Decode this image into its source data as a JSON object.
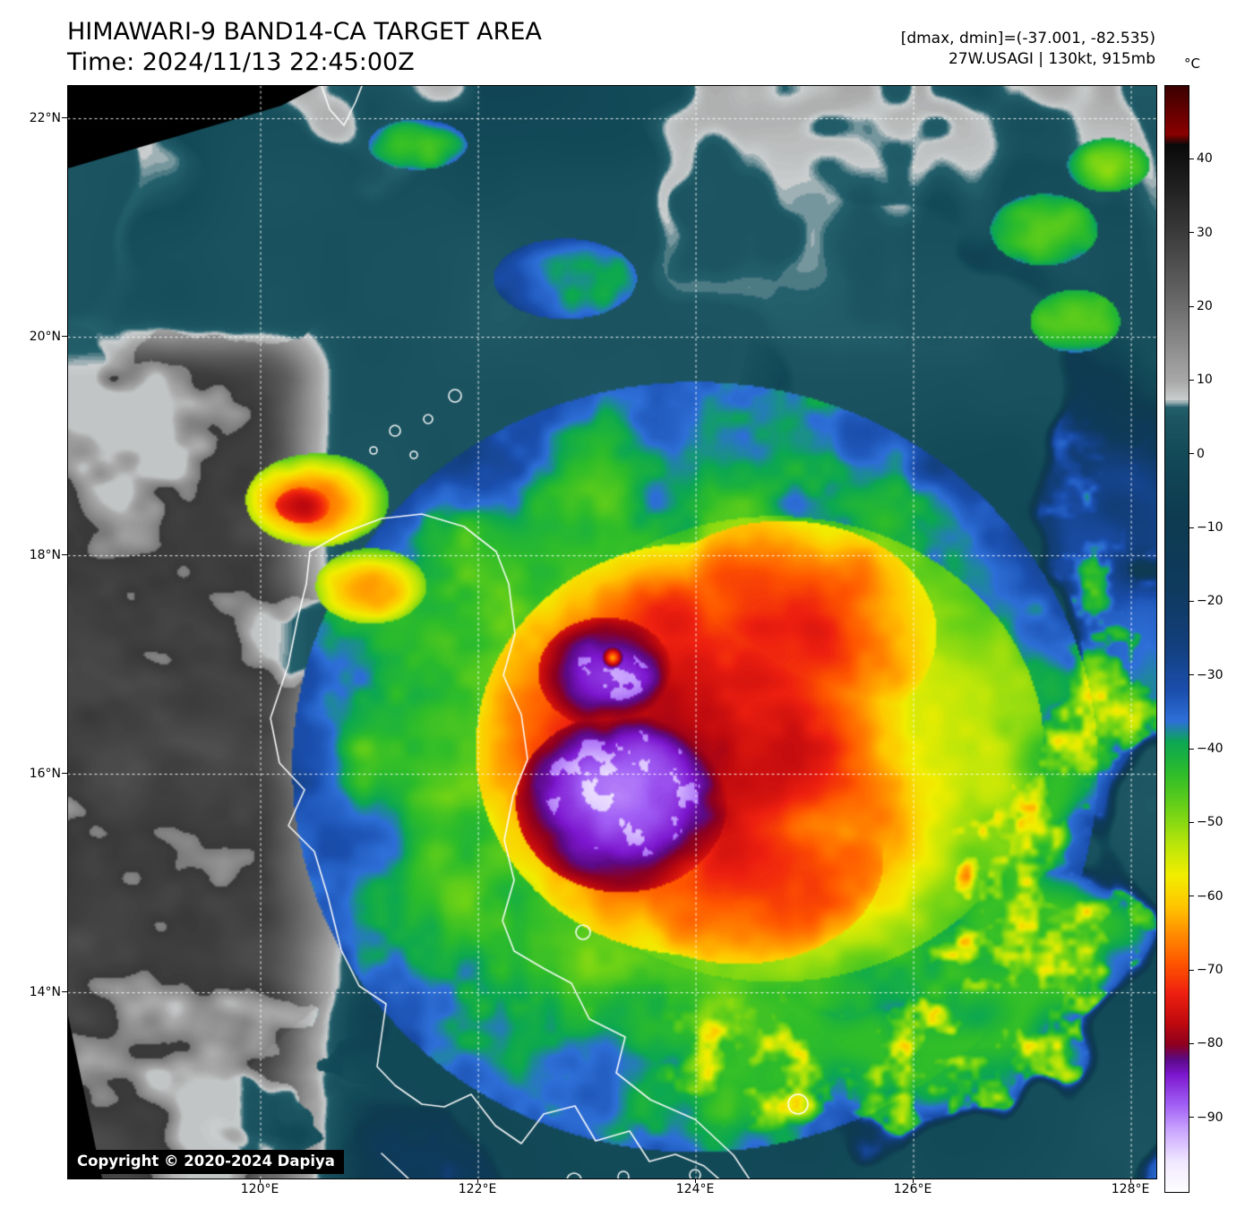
{
  "header": {
    "title": "HIMAWARI-9 BAND14-CA TARGET AREA",
    "time": "Time: 2024/11/13 22:45:00Z",
    "range_info": "[dmax, dmin]=(-37.001, -82.535)",
    "storm_info": "27W.USAGI | 130kt, 915mb"
  },
  "map": {
    "copyright": "Copyright © 2020-2024 Dapiya",
    "extent": {
      "lon_min": 118.23,
      "lon_max": 128.23,
      "lat_min": 12.3,
      "lat_max": 22.3
    },
    "grid": {
      "lats": [
        22,
        20,
        18,
        16,
        14
      ],
      "lat_labels": [
        "22°N",
        "20°N",
        "18°N",
        "16°N",
        "14°N"
      ],
      "lons": [
        120,
        122,
        124,
        126,
        128
      ],
      "lon_labels": [
        "120°E",
        "122°E",
        "124°E",
        "126°E",
        "128°E"
      ]
    }
  },
  "colorbar": {
    "unit": "°C",
    "domain": [
      -100,
      50
    ],
    "tick_values": [
      40,
      30,
      20,
      10,
      0,
      -10,
      -20,
      -30,
      -40,
      -50,
      -60,
      -70,
      -80,
      -90
    ],
    "tick_labels": [
      "40",
      "30",
      "20",
      "10",
      "0",
      "−10",
      "−20",
      "−30",
      "−40",
      "−50",
      "−60",
      "−70",
      "−80",
      "−90"
    ],
    "stops": [
      [
        -100,
        "#ffffff"
      ],
      [
        -96,
        "#f2eaff"
      ],
      [
        -92,
        "#cfadff"
      ],
      [
        -88,
        "#a15ef5"
      ],
      [
        -84,
        "#7d17cf"
      ],
      [
        -82,
        "#5c0a86"
      ],
      [
        -80,
        "#8c0020"
      ],
      [
        -77,
        "#c00a0e"
      ],
      [
        -73,
        "#ee2010"
      ],
      [
        -69,
        "#ff5500"
      ],
      [
        -65,
        "#ff8c00"
      ],
      [
        -61,
        "#ffc800"
      ],
      [
        -57,
        "#f2ee00"
      ],
      [
        -53,
        "#bde60a"
      ],
      [
        -48,
        "#6cd217"
      ],
      [
        -43,
        "#2cbc2c"
      ],
      [
        -39,
        "#0ca852"
      ],
      [
        -36,
        "#2e6fd8"
      ],
      [
        -32,
        "#1b4fae"
      ],
      [
        -26,
        "#13407e"
      ],
      [
        -18,
        "#0f3a5e"
      ],
      [
        -8,
        "#0e3c50"
      ],
      [
        0,
        "#134a58"
      ],
      [
        5,
        "#1d5662"
      ],
      [
        6.5,
        "#24606c"
      ],
      [
        7.5,
        "#c9cdce"
      ],
      [
        10,
        "#a9a9a9"
      ],
      [
        15,
        "#8b8b8b"
      ],
      [
        22,
        "#636363"
      ],
      [
        30,
        "#3c3c3c"
      ],
      [
        40,
        "#121212"
      ],
      [
        42,
        "#0a0a0a"
      ],
      [
        43.5,
        "#8b0000"
      ],
      [
        47,
        "#600000"
      ],
      [
        50,
        "#3c0000"
      ]
    ]
  }
}
